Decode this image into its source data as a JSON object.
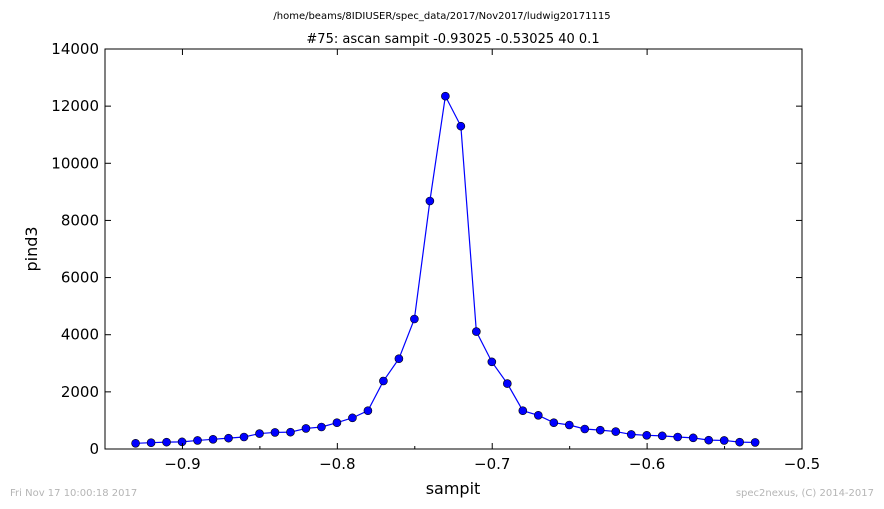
{
  "chart_data": {
    "type": "line",
    "suptitle": "/home/beams/8IDIUSER/spec_data/2017/Nov2017/ludwig20171115",
    "title": "#75: ascan  sampit -0.93025 -0.53025  40 0.1",
    "xlabel": "sampit",
    "ylabel": "pind3",
    "xlim": [
      -0.95,
      -0.5
    ],
    "ylim": [
      0,
      14000
    ],
    "xticks": [
      -0.9,
      -0.8,
      -0.7,
      -0.6,
      -0.5
    ],
    "xtick_labels": [
      "−0.9",
      "−0.8",
      "−0.7",
      "−0.6",
      "−0.5"
    ],
    "yticks": [
      0,
      2000,
      4000,
      6000,
      8000,
      10000,
      12000,
      14000
    ],
    "ytick_labels": [
      "0",
      "2000",
      "4000",
      "6000",
      "8000",
      "10000",
      "12000",
      "14000"
    ],
    "grid": false,
    "series": [
      {
        "color": "#0000ff",
        "marker": "circle",
        "x": [
          -0.93025,
          -0.92025,
          -0.91025,
          -0.90025,
          -0.89025,
          -0.88025,
          -0.87025,
          -0.86025,
          -0.85025,
          -0.84025,
          -0.83025,
          -0.82025,
          -0.81025,
          -0.80025,
          -0.79025,
          -0.78025,
          -0.77025,
          -0.76025,
          -0.75025,
          -0.74025,
          -0.73025,
          -0.72025,
          -0.71025,
          -0.70025,
          -0.69025,
          -0.68025,
          -0.67025,
          -0.66025,
          -0.65025,
          -0.64025,
          -0.63025,
          -0.62025,
          -0.61025,
          -0.60025,
          -0.59025,
          -0.58025,
          -0.57025,
          -0.56025,
          -0.55025,
          -0.54025,
          -0.53025
        ],
        "y": [
          200,
          220,
          240,
          250,
          300,
          340,
          380,
          420,
          540,
          580,
          590,
          720,
          770,
          920,
          1090,
          1340,
          2380,
          3160,
          4550,
          8680,
          12350,
          11300,
          4110,
          3050,
          2290,
          1340,
          1180,
          920,
          840,
          700,
          660,
          610,
          510,
          480,
          460,
          420,
          390,
          310,
          300,
          240,
          230
        ]
      }
    ]
  },
  "footer": {
    "left": "Fri Nov 17 10:00:18 2017",
    "right": "spec2nexus, (C) 2014-2017"
  }
}
